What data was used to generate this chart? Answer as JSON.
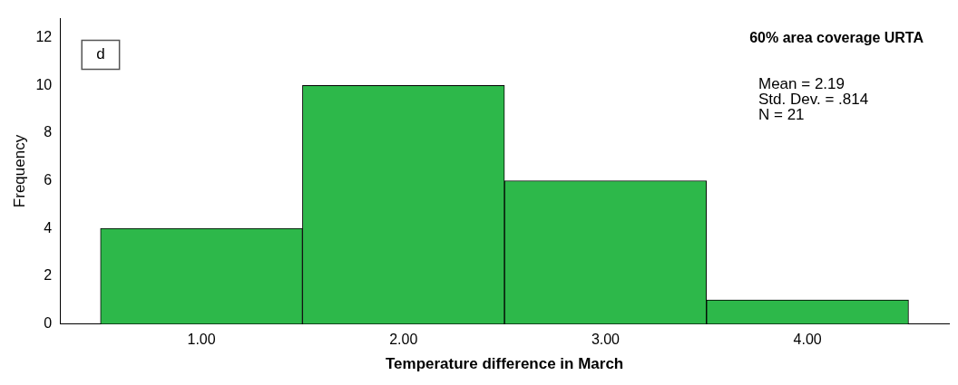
{
  "chart_data": {
    "type": "histogram",
    "title": "60% area coverage URTA",
    "xlabel": "Temperature difference in March",
    "ylabel": "Frequency",
    "bins": [
      0.5,
      1.5,
      2.5,
      3.5,
      4.5
    ],
    "values": [
      4,
      10,
      6,
      1
    ],
    "color": "#2db84a",
    "xlim": [
      0.3,
      4.7
    ],
    "xticks": [
      {
        "value": 1,
        "label": "1.00"
      },
      {
        "value": 2,
        "label": "2.00"
      },
      {
        "value": 3,
        "label": "3.00"
      },
      {
        "value": 4,
        "label": "4.00"
      }
    ],
    "ylim": [
      0,
      12.8
    ],
    "yticks": [
      0,
      2,
      4,
      6,
      8,
      10,
      12
    ],
    "grid": false,
    "legend": false,
    "annotations": [
      "d",
      "Mean = 2.19",
      "Std. Dev. = .814",
      "N = 21"
    ]
  }
}
